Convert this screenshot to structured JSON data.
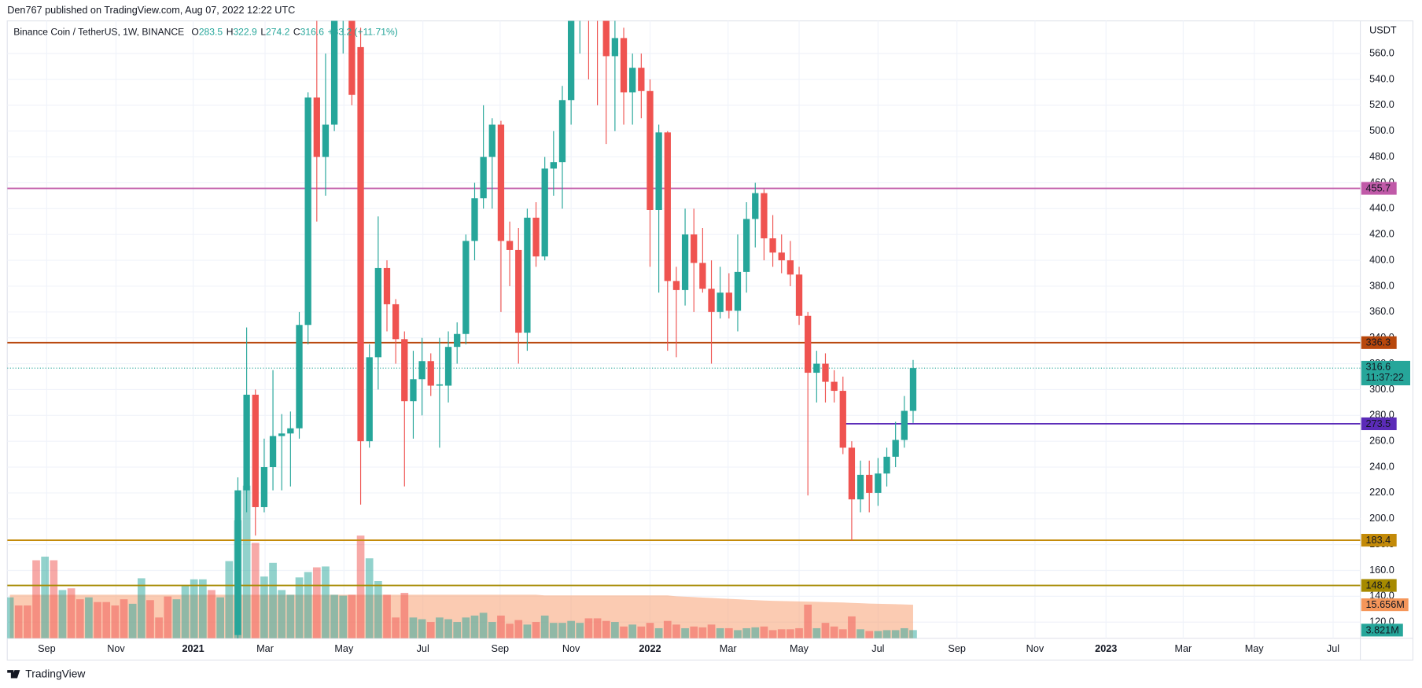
{
  "header": {
    "published": "Den767 published on TradingView.com, Aug 07, 2022 12:22 UTC"
  },
  "footer": {
    "brand": "TradingView"
  },
  "chart_data": {
    "type": "candlestick",
    "title": "Binance Coin / TetherUS, 1W, BINANCE",
    "ohlc_labels": [
      "O",
      "H",
      "L",
      "C"
    ],
    "change": "+33.2 (+11.71%)",
    "y_unit": "USDT",
    "up_color": "#26a69a",
    "down_color": "#ef5350",
    "grid": true,
    "x": [
      26,
      27,
      28,
      29,
      30,
      31,
      32,
      33,
      34,
      35,
      36,
      37,
      38,
      39,
      40,
      41,
      42,
      43,
      44,
      45,
      46,
      47,
      48,
      49,
      50,
      51,
      52,
      53,
      54,
      55,
      56,
      57,
      58,
      59,
      60,
      61,
      62,
      63,
      64,
      65,
      66,
      67,
      68,
      69,
      70,
      71,
      72,
      73,
      74,
      75,
      76,
      77,
      78,
      79,
      80,
      81,
      82,
      83,
      84,
      85,
      86,
      87,
      88,
      89,
      90,
      91,
      92,
      93,
      94,
      95,
      96,
      97,
      98,
      99,
      100,
      101,
      102,
      103
    ],
    "open": [
      110,
      222,
      296,
      209,
      240,
      264,
      266,
      270,
      350,
      526,
      480,
      505,
      600,
      640,
      565,
      260,
      325,
      394,
      366,
      339,
      291,
      308,
      322,
      303,
      303,
      333,
      343,
      415,
      448,
      480,
      505,
      415,
      408,
      344,
      433,
      403,
      471,
      476,
      524,
      600,
      640,
      610,
      600,
      558,
      572,
      530,
      549,
      531,
      439,
      499,
      384,
      377,
      420,
      398,
      378,
      360,
      375,
      361,
      391,
      432,
      452,
      417,
      406,
      400,
      389,
      357,
      313,
      320,
      306,
      299,
      255,
      215,
      234,
      220,
      235,
      248,
      261,
      283.5
    ],
    "high": [
      232,
      348,
      300,
      262,
      315,
      281,
      283,
      360,
      530,
      600,
      560,
      620,
      690,
      675,
      580,
      335,
      434,
      400,
      370,
      345,
      330,
      340,
      328,
      340,
      345,
      352,
      420,
      460,
      520,
      510,
      508,
      430,
      425,
      440,
      445,
      480,
      500,
      535,
      600,
      690,
      660,
      640,
      610,
      600,
      580,
      560,
      560,
      540,
      505,
      500,
      395,
      440,
      440,
      425,
      400,
      395,
      390,
      420,
      445,
      460,
      455,
      435,
      420,
      415,
      395,
      360,
      330,
      328,
      315,
      310,
      260,
      245,
      245,
      247,
      255,
      275,
      295,
      322.9
    ],
    "low": [
      100,
      205,
      187,
      205,
      222,
      222,
      225,
      262,
      335,
      430,
      450,
      500,
      560,
      520,
      211,
      255,
      300,
      345,
      320,
      225,
      262,
      280,
      295,
      255,
      290,
      320,
      335,
      400,
      440,
      440,
      360,
      380,
      320,
      330,
      395,
      400,
      450,
      440,
      505,
      560,
      540,
      520,
      490,
      500,
      505,
      505,
      510,
      395,
      375,
      330,
      325,
      365,
      360,
      375,
      320,
      355,
      355,
      345,
      375,
      410,
      400,
      395,
      390,
      380,
      350,
      218,
      290,
      290,
      290,
      250,
      183,
      205,
      205,
      210,
      225,
      240,
      255,
      274.2
    ],
    "close": [
      222,
      296,
      209,
      240,
      264,
      266,
      270,
      350,
      526,
      480,
      505,
      600,
      640,
      528,
      260,
      325,
      394,
      366,
      339,
      291,
      308,
      322,
      303,
      304,
      333,
      343,
      415,
      448,
      480,
      505,
      415,
      408,
      344,
      433,
      403,
      471,
      476,
      524,
      600,
      640,
      610,
      600,
      558,
      572,
      530,
      549,
      531,
      439,
      499,
      384,
      377,
      420,
      398,
      378,
      360,
      375,
      361,
      391,
      432,
      452,
      417,
      406,
      400,
      389,
      357,
      313,
      320,
      306,
      299,
      255,
      215,
      234,
      220,
      235,
      248,
      261,
      283.5,
      316.6
    ],
    "countdown": "11:37:22",
    "xlim": [
      -0.3,
      154
    ],
    "xticks": [
      {
        "value": 4.2,
        "label": "Sep"
      },
      {
        "value": 12.1,
        "label": "Nov"
      },
      {
        "value": 20.9,
        "label": "2021"
      },
      {
        "value": 29.1,
        "label": "Mar"
      },
      {
        "value": 38.1,
        "label": "May"
      },
      {
        "value": 47.1,
        "label": "Jul"
      },
      {
        "value": 55.9,
        "label": "Sep"
      },
      {
        "value": 64.0,
        "label": "Nov"
      },
      {
        "value": 73.0,
        "label": "2022"
      },
      {
        "value": 81.9,
        "label": "Mar"
      },
      {
        "value": 90.0,
        "label": "May"
      },
      {
        "value": 99.0,
        "label": "Jul"
      },
      {
        "value": 108.0,
        "label": "Sep"
      },
      {
        "value": 116.9,
        "label": "Nov"
      },
      {
        "value": 125.0,
        "label": "2023"
      },
      {
        "value": 133.8,
        "label": "Mar"
      },
      {
        "value": 141.9,
        "label": "May"
      },
      {
        "value": 150.9,
        "label": "Jul"
      }
    ],
    "ylim": [
      107.5,
      585.3
    ],
    "yticks": [
      {
        "value": 120,
        "label": "120.0"
      },
      {
        "value": 140,
        "label": "140.0"
      },
      {
        "value": 160,
        "label": "160.0"
      },
      {
        "value": 180,
        "label": "180.0"
      },
      {
        "value": 200,
        "label": "200.0"
      },
      {
        "value": 220,
        "label": "220.0"
      },
      {
        "value": 240,
        "label": "240.0"
      },
      {
        "value": 260,
        "label": "260.0"
      },
      {
        "value": 280,
        "label": "280.0"
      },
      {
        "value": 300,
        "label": "300.0"
      },
      {
        "value": 320,
        "label": "320.0"
      },
      {
        "value": 340,
        "label": "340.0"
      },
      {
        "value": 360,
        "label": "360.0"
      },
      {
        "value": 380,
        "label": "380.0"
      },
      {
        "value": 400,
        "label": "400.0"
      },
      {
        "value": 420,
        "label": "420.0"
      },
      {
        "value": 440,
        "label": "440.0"
      },
      {
        "value": 460,
        "label": "460.0"
      },
      {
        "value": 480,
        "label": "480.0"
      },
      {
        "value": 500,
        "label": "500.0"
      },
      {
        "value": 520,
        "label": "520.0"
      },
      {
        "value": 540,
        "label": "540.0"
      },
      {
        "value": 560,
        "label": "560.0"
      }
    ],
    "hlines": [
      {
        "value": 455.7,
        "color": "#c05aa8"
      },
      {
        "value": 336.3,
        "color": "#b8470c"
      },
      {
        "value": 273.5,
        "color": "#5b2bb8",
        "from": 95
      },
      {
        "value": 183.4,
        "color": "#c38a08"
      },
      {
        "value": 148.4,
        "color": "#a68a00"
      }
    ],
    "volume": {
      "vlim": [
        0,
        288
      ],
      "values": [
        19.1,
        15.3,
        15.3,
        36.4,
        38.1,
        36.4,
        22.5,
        23.3,
        18.2,
        19.1,
        16.9,
        16.9,
        15.3,
        18.2,
        16.1,
        28.0,
        17.8,
        9.7,
        19.5,
        18.2,
        24.6,
        27.5,
        27.5,
        22.5,
        19.1,
        36.0,
        55.1,
        71.2,
        44.5,
        28.8,
        35.2,
        22.5,
        20.3,
        28.4,
        30.9,
        33.1,
        33.5,
        20.3,
        19.9,
        20.3,
        47.9,
        37.3,
        26.7,
        20.3,
        9.7,
        21.2,
        9.7,
        8.9,
        7.6,
        9.7,
        8.9,
        7.6,
        9.7,
        10.6,
        11.9,
        7.6,
        10.6,
        6.8,
        8.5,
        6.4,
        7.6,
        10.6,
        7.2,
        7.2,
        8.1,
        7.2,
        9.3,
        9.3,
        8.1,
        7.6,
        5.5,
        6.4,
        5.5,
        7.2,
        4.7,
        8.1,
        6.4,
        4.7,
        5.5,
        5.1,
        6.4,
        4.7,
        4.7,
        3.8,
        4.7,
        5.1,
        5.5,
        3.8,
        4.2,
        4.2,
        4.7,
        15.7,
        4.7,
        7.2,
        5.5,
        4.2,
        10.2,
        4.2,
        3.4,
        3.4,
        3.8,
        3.8,
        4.7,
        3.821
      ],
      "colors": [
        "#26a69a",
        "#ef5350",
        "#ef5350",
        "#ef5350",
        "#26a69a",
        "#ef5350",
        "#26a69a",
        "#ef5350",
        "#ef5350",
        "#26a69a",
        "#ef5350",
        "#ef5350",
        "#ef5350",
        "#ef5350",
        "#26a69a",
        "#26a69a",
        "#ef5350",
        "#ef5350",
        "#ef5350",
        "#26a69a",
        "#26a69a",
        "#26a69a",
        "#26a69a",
        "#ef5350",
        "#26a69a",
        "#26a69a",
        "#26a69a",
        "#26a69a",
        "#ef5350",
        "#26a69a",
        "#26a69a",
        "#26a69a",
        "#26a69a",
        "#26a69a",
        "#26a69a",
        "#ef5350",
        "#26a69a",
        "#26a69a",
        "#26a69a",
        "#ef5350",
        "#ef5350",
        "#26a69a",
        "#26a69a",
        "#ef5350",
        "#ef5350",
        "#ef5350",
        "#26a69a",
        "#26a69a",
        "#ef5350",
        "#26a69a",
        "#26a69a",
        "#26a69a",
        "#26a69a",
        "#26a69a",
        "#26a69a",
        "#26a69a",
        "#ef5350",
        "#ef5350",
        "#ef5350",
        "#26a69a",
        "#ef5350",
        "#26a69a",
        "#26a69a",
        "#26a69a",
        "#26a69a",
        "#26a69a",
        "#ef5350",
        "#ef5350",
        "#ef5350",
        "#26a69a",
        "#ef5350",
        "#26a69a",
        "#ef5350",
        "#ef5350",
        "#26a69a",
        "#ef5350",
        "#ef5350",
        "#26a69a",
        "#ef5350",
        "#ef5350",
        "#ef5350",
        "#26a69a",
        "#ef5350",
        "#26a69a",
        "#26a69a",
        "#26a69a",
        "#ef5350",
        "#ef5350",
        "#ef5350",
        "#ef5350",
        "#ef5350",
        "#ef5350",
        "#26a69a",
        "#ef5350",
        "#ef5350",
        "#ef5350",
        "#ef5350",
        "#26a69a",
        "#ef5350",
        "#26a69a",
        "#26a69a",
        "#26a69a",
        "#26a69a",
        "#26a69a"
      ],
      "value_label": "3.821M",
      "ma": [
        20.3,
        20.3,
        20.3,
        20.3,
        20.3,
        20.3,
        20.3,
        20.3,
        20.3,
        20.3,
        20.3,
        20.3,
        20.3,
        20.3,
        20.3,
        20.3,
        20.3,
        20.3,
        20.3,
        20.3,
        20.3,
        20.3,
        20.3,
        20.3,
        20.3,
        20.3,
        20.3,
        20.3,
        20.3,
        20.3,
        20.3,
        20.3,
        20.3,
        20.3,
        20.3,
        20.3,
        20.3,
        20.3,
        20.3,
        20.3,
        20.3,
        20.3,
        20.3,
        20.3,
        20.3,
        20.3,
        20.3,
        20.3,
        20.3,
        20.3,
        20.3,
        20.3,
        20.3,
        20.3,
        20.3,
        20.3,
        20.3,
        20.3,
        20.3,
        20.3,
        20.3,
        20.0,
        20.0,
        20.0,
        20.0,
        20.0,
        20.0,
        20.0,
        20.0,
        20.0,
        20.0,
        20.0,
        20.0,
        20.0,
        20.0,
        20.0,
        19.6,
        19.4,
        19.2,
        19.0,
        18.8,
        18.6,
        18.4,
        18.2,
        18.0,
        17.8,
        17.6,
        17.5,
        17.4,
        17.3,
        17.2,
        17.1,
        17.0,
        16.9,
        16.8,
        16.7,
        16.5,
        16.4,
        16.2,
        16.1,
        16.0,
        15.9,
        15.8,
        15.656
      ],
      "ma_color": "#f7a072",
      "ma_label": "15.656M"
    }
  }
}
